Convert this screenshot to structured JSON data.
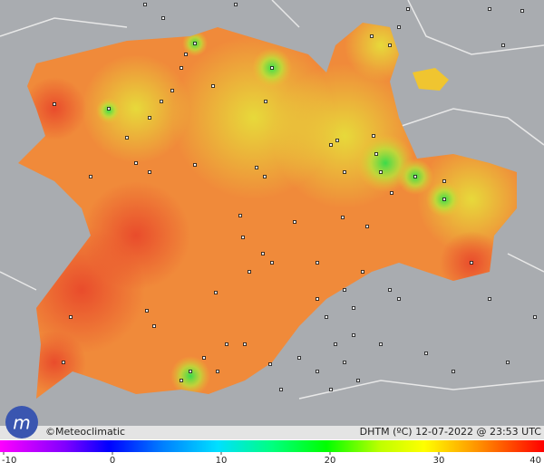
{
  "map": {
    "credit": "©Meteoclimatic",
    "caption": "DHTM (ºC) 12-07-2022 @ 23:53 UTC",
    "colorbar": {
      "lim": [
        -10,
        40
      ],
      "ticks": [
        -10,
        0,
        10,
        20,
        30,
        40
      ]
    }
  }
}
